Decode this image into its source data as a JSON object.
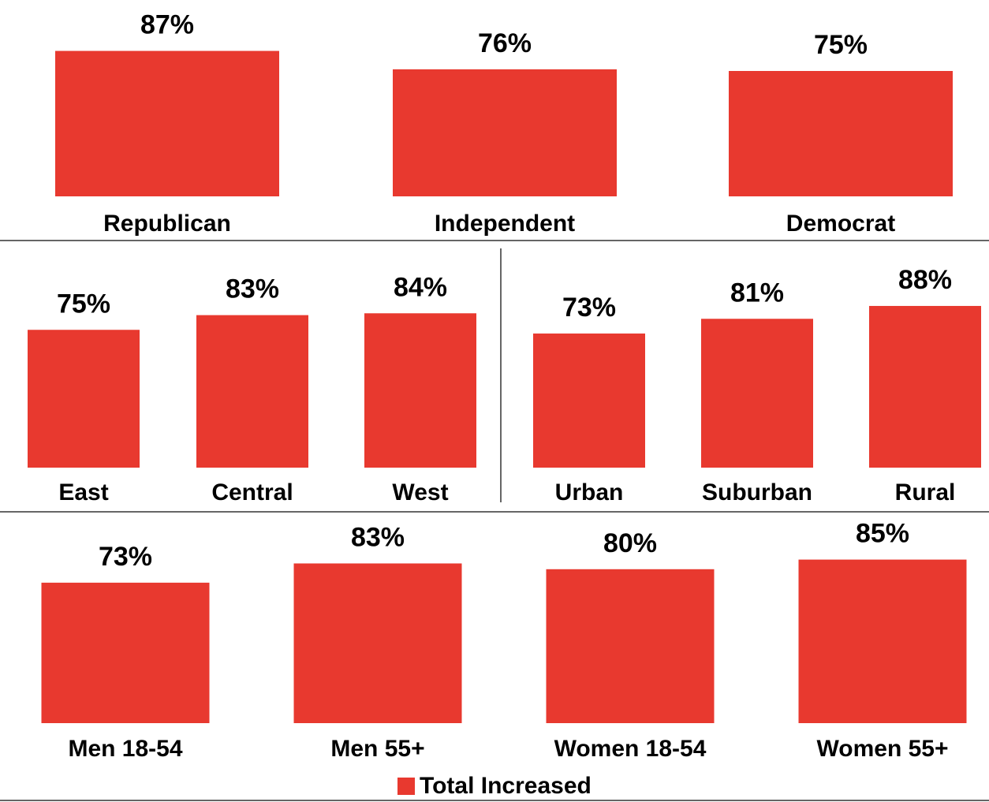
{
  "colors": {
    "bar": "#E8392F",
    "divider": "#333333"
  },
  "chart_data": [
    {
      "type": "bar",
      "categories": [
        "Republican",
        "Independent",
        "Democrat"
      ],
      "series": [
        {
          "name": "Total Increased",
          "values": [
            87,
            76,
            75
          ]
        }
      ],
      "value_labels": [
        "87%",
        "76%",
        "75%"
      ]
    },
    {
      "type": "bar",
      "categories": [
        "East",
        "Central",
        "West"
      ],
      "series": [
        {
          "name": "Total Increased",
          "values": [
            75,
            83,
            84
          ]
        }
      ],
      "value_labels": [
        "75%",
        "83%",
        "84%"
      ]
    },
    {
      "type": "bar",
      "categories": [
        "Urban",
        "Suburban",
        "Rural"
      ],
      "series": [
        {
          "name": "Total Increased",
          "values": [
            73,
            81,
            88
          ]
        }
      ],
      "value_labels": [
        "73%",
        "81%",
        "88%"
      ]
    },
    {
      "type": "bar",
      "categories": [
        "Men 18-54",
        "Men 55+",
        "Women 18-54",
        "Women 55+"
      ],
      "series": [
        {
          "name": "Total Increased",
          "values": [
            73,
            83,
            80,
            85
          ]
        }
      ],
      "value_labels": [
        "73%",
        "83%",
        "80%",
        "85%"
      ]
    }
  ],
  "legend": {
    "label": "Total Increased",
    "position": "bottom"
  }
}
